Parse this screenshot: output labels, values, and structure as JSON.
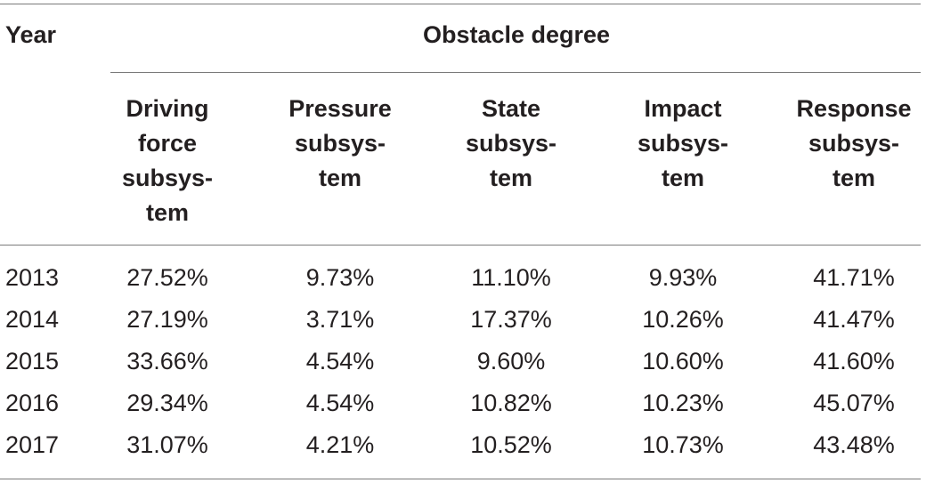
{
  "table": {
    "year_header": "Year",
    "group_header": "Obstacle degree",
    "columns": [
      "Driving\nforce\nsubsys-\ntem",
      "Pressure\nsubsys-\ntem",
      "State\nsubsys-\ntem",
      "Impact\nsubsys-\ntem",
      "Response\nsubsys-\ntem"
    ],
    "rows": [
      {
        "year": "2013",
        "values": [
          "27.52%",
          "9.73%",
          "11.10%",
          "9.93%",
          "41.71%"
        ]
      },
      {
        "year": "2014",
        "values": [
          "27.19%",
          "3.71%",
          "17.37%",
          "10.26%",
          "41.47%"
        ]
      },
      {
        "year": "2015",
        "values": [
          "33.66%",
          "4.54%",
          "9.60%",
          "10.60%",
          "41.60%"
        ]
      },
      {
        "year": "2016",
        "values": [
          "29.34%",
          "4.54%",
          "10.82%",
          "10.23%",
          "45.07%"
        ]
      },
      {
        "year": "2017",
        "values": [
          "31.07%",
          "4.21%",
          "10.52%",
          "10.73%",
          "43.48%"
        ]
      }
    ]
  }
}
